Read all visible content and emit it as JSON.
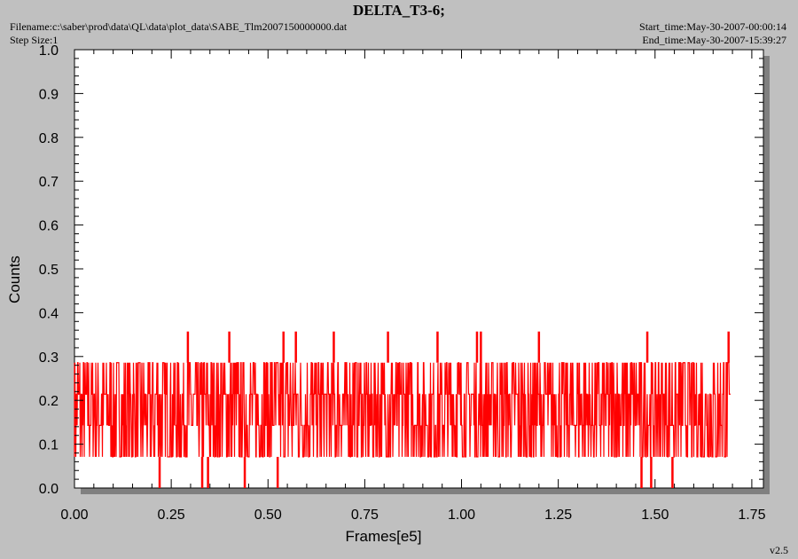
{
  "header": {
    "title": "DELTA_T3-6;",
    "filename": "Filename:c:\\saber\\prod\\data\\QL\\data\\plot_data\\SABE_Tlm2007150000000.dat",
    "step_size": "Step Size:1",
    "start_time": "Start_time:May-30-2007-00:00:14",
    "end_time": "End_time:May-30-2007-15:39:27"
  },
  "footer": {
    "version": "v2.5"
  },
  "colors": {
    "series": "#ff0000",
    "plot_bg": "#ffffff",
    "page_bg": "#c0c0c0",
    "shadow": "#808080"
  },
  "chart_data": {
    "type": "line",
    "xlabel": "Frames[e5]",
    "ylabel": "Counts",
    "xlim": [
      0,
      1.78
    ],
    "ylim": [
      0,
      1.0
    ],
    "xticks": [
      "0.00",
      "0.25",
      "0.50",
      "0.75",
      "1.00",
      "1.25",
      "1.50",
      "1.75"
    ],
    "yticks": [
      "0.0",
      "0.1",
      "0.2",
      "0.3",
      "0.4",
      "0.5",
      "0.6",
      "0.7",
      "0.8",
      "0.9",
      "1.0"
    ],
    "grid": false,
    "series": [
      {
        "x_range": [
          0,
          1.695
        ],
        "band_low": 0.071,
        "band_high": 0.286,
        "mid_values": [
          0.143,
          0.214
        ],
        "end_value": 0.214,
        "spikes_high_x": [
          0.293,
          0.4,
          0.54,
          0.572,
          0.67,
          0.81,
          0.938,
          1.04,
          1.05,
          1.2,
          1.48,
          1.69
        ],
        "spikes_high_y": 0.357,
        "spikes_low_x": [
          0.22,
          0.33,
          0.345,
          0.44,
          0.525,
          1.465,
          1.49,
          1.545
        ],
        "spikes_low_y": 0.0
      }
    ]
  }
}
